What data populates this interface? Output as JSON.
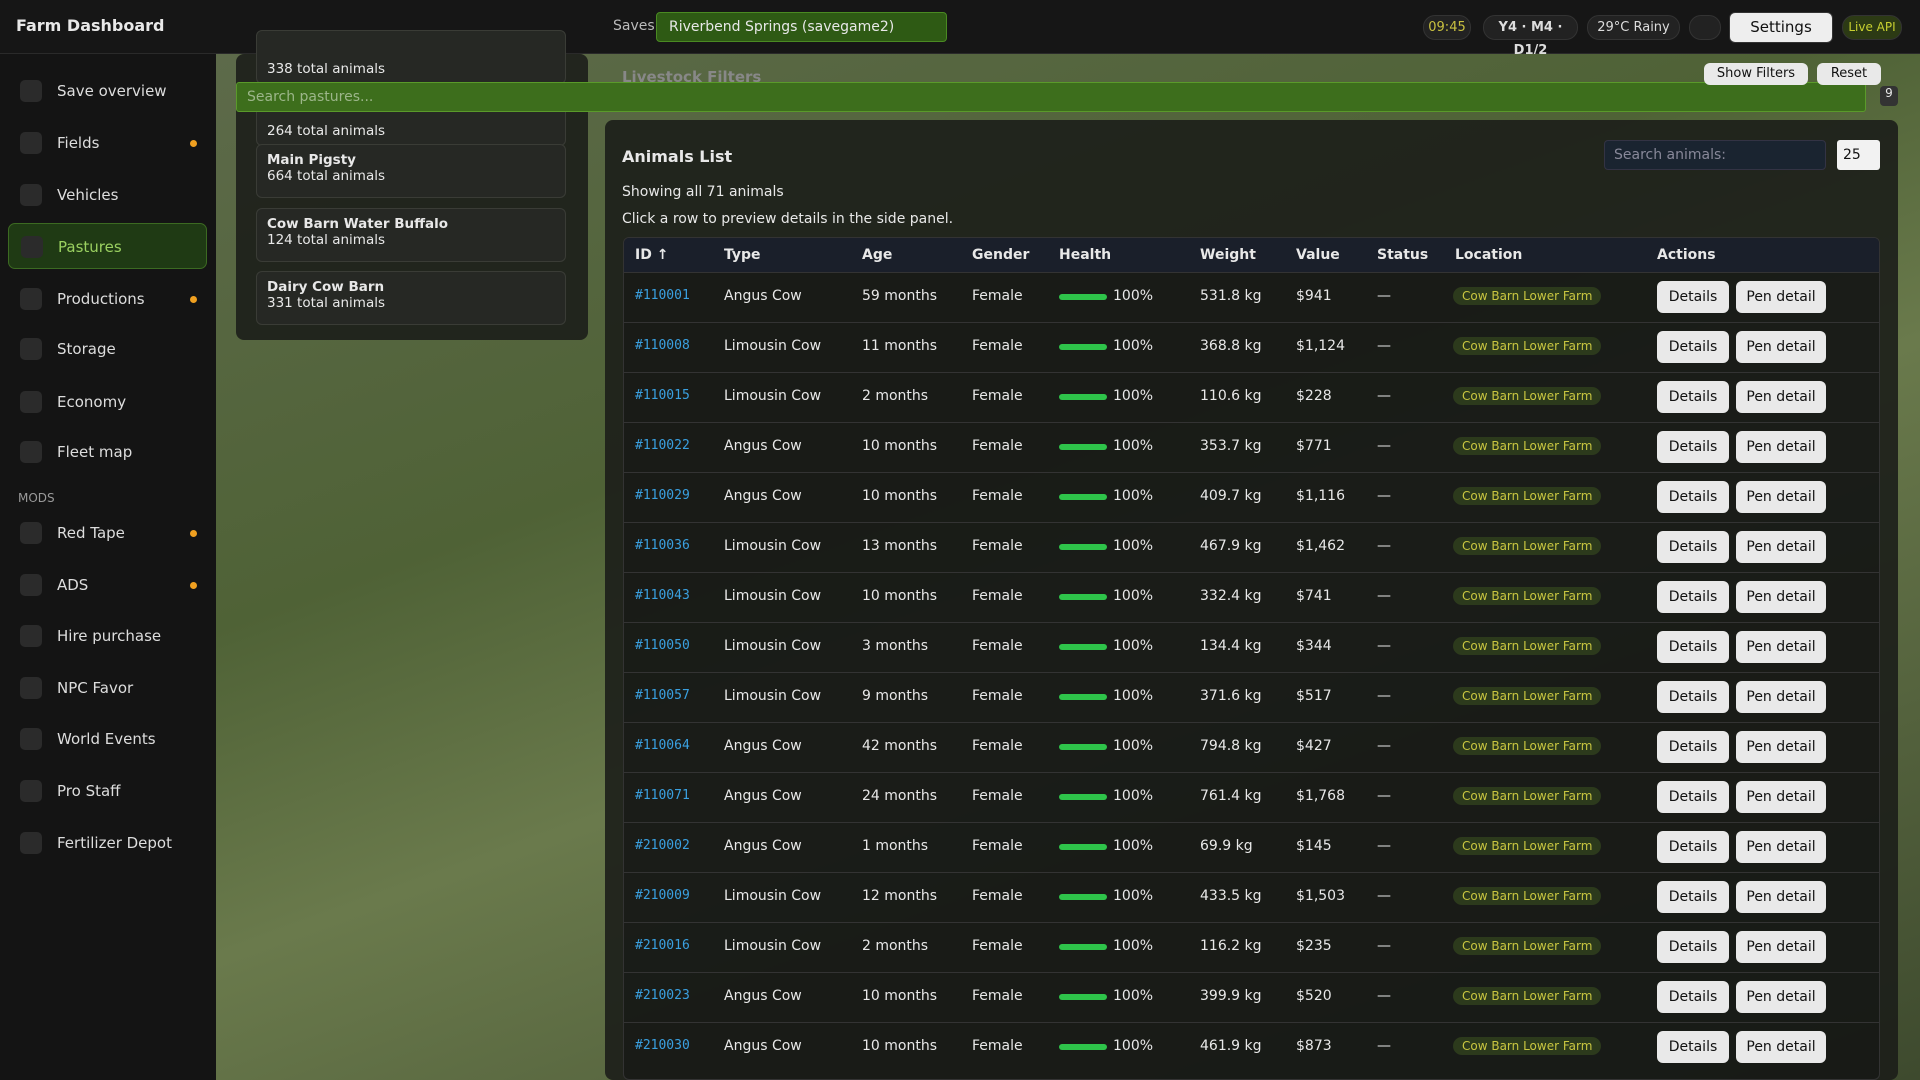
{
  "header": {
    "title": "Farm Dashboard",
    "saves_label": "Saves",
    "save": "Riverbend Springs (savegame2)",
    "time": "09:45",
    "date": "Y4 · M4 · D1/2",
    "weather": "29°C Rainy",
    "settings": "Settings",
    "live": "Live API"
  },
  "sidebar": {
    "items": [
      {
        "name": "Save overview",
        "dot": false
      },
      {
        "name": "Fields",
        "dot": true
      },
      {
        "name": "Vehicles",
        "dot": false
      },
      {
        "name": "Pastures",
        "dot": false,
        "active": true
      },
      {
        "name": "Productions",
        "dot": true
      },
      {
        "name": "Storage",
        "dot": false
      },
      {
        "name": "Economy",
        "dot": false
      },
      {
        "name": "Fleet map",
        "dot": false
      }
    ],
    "mods_label": "MODS",
    "mods": [
      {
        "name": "Red Tape",
        "dot": true
      },
      {
        "name": "ADS",
        "dot": true
      },
      {
        "name": "Hire purchase",
        "dot": false
      },
      {
        "name": "NPC Favor",
        "dot": false
      },
      {
        "name": "World Events",
        "dot": false
      },
      {
        "name": "Pro Staff",
        "dot": false
      },
      {
        "name": "Fertilizer Depot",
        "dot": false
      }
    ]
  },
  "pastures": {
    "search": "Search pastures...",
    "items": [
      {
        "count": "338 total animals"
      },
      {
        "count": "264 total animals"
      },
      {
        "name": "Main Pigsty",
        "count": "664 total animals"
      },
      {
        "name": "Cow Barn Water Buffalo",
        "count": "124 total animals"
      },
      {
        "name": "Dairy Cow Barn",
        "count": "331 total animals"
      }
    ]
  },
  "filters": {
    "title": "Livestock Filters",
    "show": "Show Filters",
    "reset": "Reset",
    "badge": "9"
  },
  "animals": {
    "title": "Animals List",
    "search": "Search animals:",
    "page_size": "25",
    "showing": "Showing all 71 animals",
    "hint": "Click a row to preview details in the side panel.",
    "columns": [
      "ID ↑",
      "Type",
      "Age",
      "Gender",
      "Health",
      "Weight",
      "Value",
      "Status",
      "Location",
      "Actions"
    ],
    "actions": [
      "Details",
      "Pen detail"
    ],
    "rows": [
      [
        "#110001",
        "Angus Cow",
        "59 months",
        "Female",
        "100%",
        "531.8 kg",
        "$941",
        "—",
        "Cow Barn Lower Farm"
      ],
      [
        "#110008",
        "Limousin Cow",
        "11 months",
        "Female",
        "100%",
        "368.8 kg",
        "$1,124",
        "—",
        "Cow Barn Lower Farm"
      ],
      [
        "#110015",
        "Limousin Cow",
        "2 months",
        "Female",
        "100%",
        "110.6 kg",
        "$228",
        "—",
        "Cow Barn Lower Farm"
      ],
      [
        "#110022",
        "Angus Cow",
        "10 months",
        "Female",
        "100%",
        "353.7 kg",
        "$771",
        "—",
        "Cow Barn Lower Farm"
      ],
      [
        "#110029",
        "Angus Cow",
        "10 months",
        "Female",
        "100%",
        "409.7 kg",
        "$1,116",
        "—",
        "Cow Barn Lower Farm"
      ],
      [
        "#110036",
        "Limousin Cow",
        "13 months",
        "Female",
        "100%",
        "467.9 kg",
        "$1,462",
        "—",
        "Cow Barn Lower Farm"
      ],
      [
        "#110043",
        "Limousin Cow",
        "10 months",
        "Female",
        "100%",
        "332.4 kg",
        "$741",
        "—",
        "Cow Barn Lower Farm"
      ],
      [
        "#110050",
        "Limousin Cow",
        "3 months",
        "Female",
        "100%",
        "134.4 kg",
        "$344",
        "—",
        "Cow Barn Lower Farm"
      ],
      [
        "#110057",
        "Limousin Cow",
        "9 months",
        "Female",
        "100%",
        "371.6 kg",
        "$517",
        "—",
        "Cow Barn Lower Farm"
      ],
      [
        "#110064",
        "Angus Cow",
        "42 months",
        "Female",
        "100%",
        "794.8 kg",
        "$427",
        "—",
        "Cow Barn Lower Farm"
      ],
      [
        "#110071",
        "Angus Cow",
        "24 months",
        "Female",
        "100%",
        "761.4 kg",
        "$1,768",
        "—",
        "Cow Barn Lower Farm"
      ],
      [
        "#210002",
        "Angus Cow",
        "1 months",
        "Female",
        "100%",
        "69.9 kg",
        "$145",
        "—",
        "Cow Barn Lower Farm"
      ],
      [
        "#210009",
        "Limousin Cow",
        "12 months",
        "Female",
        "100%",
        "433.5 kg",
        "$1,503",
        "—",
        "Cow Barn Lower Farm"
      ],
      [
        "#210016",
        "Limousin Cow",
        "2 months",
        "Female",
        "100%",
        "116.2 kg",
        "$235",
        "—",
        "Cow Barn Lower Farm"
      ],
      [
        "#210023",
        "Angus Cow",
        "10 months",
        "Female",
        "100%",
        "399.9 kg",
        "$520",
        "—",
        "Cow Barn Lower Farm"
      ],
      [
        "#210030",
        "Angus Cow",
        "10 months",
        "Female",
        "100%",
        "461.9 kg",
        "$873",
        "—",
        "Cow Barn Lower Farm"
      ]
    ]
  }
}
